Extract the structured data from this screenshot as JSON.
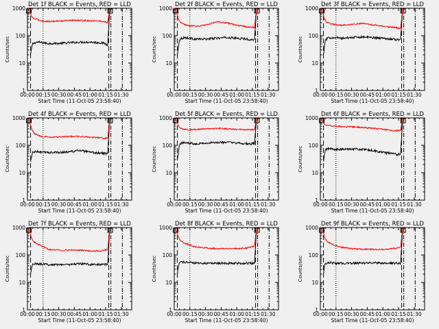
{
  "figure": {
    "ylabel": "Counts/sec",
    "xlabel": "Start Time (11-Oct-05 23:58:40)",
    "xtick_labels": [
      "00:00",
      "00:15",
      "00:30",
      "00:45",
      "01:00",
      "01:15",
      "01:30"
    ],
    "ytick_labels": [
      "1",
      "10",
      "100",
      "1000"
    ],
    "colors": {
      "events": "#000000",
      "lld": "#ff0000",
      "background": "#f0f0f0"
    }
  },
  "chart_data": [
    {
      "type": "line",
      "title": "Det 1f BLACK = Events, RED = LLD",
      "xlabel": "Start Time (11-Oct-05 23:58:40)",
      "ylabel": "Counts/sec",
      "x_unit": "minutes after 00:00",
      "xlim": [
        0,
        100
      ],
      "ylim": [
        1,
        1000
      ],
      "yscale": "log",
      "series": [
        {
          "name": "Events",
          "color": "#000000",
          "x": [
            3,
            4,
            5,
            7,
            10,
            15,
            20,
            30,
            40,
            50,
            60,
            70,
            74,
            77,
            79
          ],
          "y": [
            20,
            35,
            50,
            55,
            58,
            55,
            52,
            52,
            55,
            58,
            58,
            55,
            52,
            45,
            1000
          ]
        },
        {
          "name": "LLD",
          "color": "#ff0000",
          "x": [
            0,
            1,
            2,
            4,
            6,
            10,
            15,
            20,
            30,
            40,
            50,
            60,
            70,
            74,
            77,
            79
          ],
          "y": [
            1000,
            1000,
            800,
            500,
            420,
            380,
            340,
            330,
            340,
            360,
            360,
            350,
            340,
            320,
            300,
            1000
          ]
        }
      ],
      "vlines_dashed": [
        3,
        78
      ],
      "vlines_dotted": [
        15
      ],
      "vlines_dashdot": [
        80,
        91
      ]
    },
    {
      "type": "line",
      "title": "Det 2f BLACK = Events, RED = LLD",
      "xlabel": "Start Time (11-Oct-05 23:58:40)",
      "ylabel": "Counts/sec",
      "x_unit": "minutes after 00:00",
      "xlim": [
        0,
        100
      ],
      "ylim": [
        1,
        1000
      ],
      "yscale": "log",
      "series": [
        {
          "name": "Events",
          "color": "#000000",
          "x": [
            3,
            4,
            5,
            7,
            10,
            15,
            20,
            30,
            40,
            50,
            60,
            70,
            74,
            77,
            79
          ],
          "y": [
            20,
            40,
            70,
            80,
            85,
            80,
            75,
            75,
            80,
            85,
            80,
            75,
            70,
            75,
            1000
          ]
        },
        {
          "name": "LLD",
          "color": "#ff0000",
          "x": [
            0,
            1,
            2,
            4,
            6,
            10,
            15,
            20,
            30,
            40,
            50,
            60,
            70,
            74,
            77,
            79
          ],
          "y": [
            1000,
            1000,
            800,
            400,
            300,
            250,
            230,
            220,
            240,
            320,
            290,
            240,
            210,
            200,
            200,
            1000
          ]
        }
      ],
      "vlines_dashed": [
        3,
        78
      ],
      "vlines_dotted": [
        15
      ],
      "vlines_dashdot": [
        80,
        91
      ]
    },
    {
      "type": "line",
      "title": "Det 3f BLACK = Events, RED = LLD",
      "xlabel": "Start Time (11-Oct-05 23:58:40)",
      "ylabel": "Counts/sec",
      "x_unit": "minutes after 00:00",
      "xlim": [
        0,
        100
      ],
      "ylim": [
        1,
        1000
      ],
      "yscale": "log",
      "series": [
        {
          "name": "Events",
          "color": "#000000",
          "x": [
            3,
            4,
            5,
            7,
            10,
            15,
            20,
            30,
            40,
            50,
            60,
            70,
            74,
            77,
            79
          ],
          "y": [
            20,
            40,
            70,
            80,
            85,
            85,
            80,
            85,
            90,
            85,
            80,
            75,
            70,
            75,
            1000
          ]
        },
        {
          "name": "LLD",
          "color": "#ff0000",
          "x": [
            0,
            1,
            2,
            4,
            6,
            10,
            15,
            20,
            30,
            40,
            50,
            60,
            70,
            74,
            77,
            79
          ],
          "y": [
            1000,
            1000,
            800,
            400,
            320,
            270,
            250,
            240,
            260,
            280,
            250,
            220,
            200,
            190,
            190,
            1000
          ]
        }
      ],
      "vlines_dashed": [
        3,
        78
      ],
      "vlines_dotted": [
        15
      ],
      "vlines_dashdot": [
        80,
        91
      ]
    },
    {
      "type": "line",
      "title": "Det 4f BLACK = Events, RED = LLD",
      "xlabel": "Start Time (11-Oct-05 23:58:40)",
      "ylabel": "Counts/sec",
      "x_unit": "minutes after 00:00",
      "xlim": [
        0,
        100
      ],
      "ylim": [
        1,
        1000
      ],
      "yscale": "log",
      "series": [
        {
          "name": "Events",
          "color": "#000000",
          "x": [
            3,
            4,
            5,
            7,
            10,
            15,
            20,
            30,
            40,
            50,
            60,
            70,
            74,
            77,
            79
          ],
          "y": [
            25,
            40,
            55,
            58,
            58,
            55,
            55,
            55,
            58,
            65,
            55,
            52,
            50,
            50,
            1000
          ]
        },
        {
          "name": "LLD",
          "color": "#ff0000",
          "x": [
            0,
            1,
            2,
            4,
            6,
            10,
            15,
            20,
            30,
            40,
            50,
            60,
            70,
            74,
            77,
            79
          ],
          "y": [
            1000,
            1000,
            800,
            400,
            280,
            230,
            210,
            200,
            200,
            210,
            210,
            200,
            190,
            180,
            180,
            1000
          ]
        }
      ],
      "vlines_dashed": [
        3,
        78
      ],
      "vlines_dotted": [
        15
      ],
      "vlines_dashdot": [
        80,
        91
      ]
    },
    {
      "type": "line",
      "title": "Det 5f BLACK = Events, RED = LLD",
      "xlabel": "Start Time (11-Oct-05 23:58:40)",
      "ylabel": "Counts/sec",
      "x_unit": "minutes after 00:00",
      "xlim": [
        0,
        100
      ],
      "ylim": [
        1,
        1000
      ],
      "yscale": "log",
      "series": [
        {
          "name": "Events",
          "color": "#000000",
          "x": [
            3,
            4,
            5,
            7,
            10,
            15,
            20,
            30,
            40,
            50,
            60,
            70,
            74,
            77,
            79
          ],
          "y": [
            30,
            60,
            110,
            120,
            125,
            120,
            115,
            120,
            125,
            130,
            120,
            115,
            110,
            120,
            1000
          ]
        },
        {
          "name": "LLD",
          "color": "#ff0000",
          "x": [
            0,
            1,
            2,
            4,
            6,
            10,
            15,
            20,
            30,
            40,
            50,
            60,
            70,
            74,
            77,
            79
          ],
          "y": [
            1000,
            1000,
            800,
            500,
            420,
            380,
            370,
            380,
            400,
            420,
            400,
            380,
            370,
            370,
            380,
            1000
          ]
        }
      ],
      "vlines_dashed": [
        3,
        78
      ],
      "vlines_dotted": [
        15
      ],
      "vlines_dashdot": [
        80,
        91
      ]
    },
    {
      "type": "line",
      "title": "Det 6f BLACK = Events, RED = LLD",
      "xlabel": "Start Time (11-Oct-05 23:58:40)",
      "ylabel": "Counts/sec",
      "x_unit": "minutes after 00:00",
      "xlim": [
        0,
        100
      ],
      "ylim": [
        1,
        1000
      ],
      "yscale": "log",
      "series": [
        {
          "name": "Events",
          "color": "#000000",
          "x": [
            3,
            4,
            5,
            7,
            10,
            15,
            20,
            30,
            40,
            50,
            60,
            70,
            74,
            77,
            79
          ],
          "y": [
            25,
            45,
            70,
            75,
            75,
            70,
            70,
            75,
            70,
            65,
            55,
            50,
            45,
            50,
            1000
          ]
        },
        {
          "name": "LLD",
          "color": "#ff0000",
          "x": [
            0,
            1,
            2,
            4,
            6,
            10,
            15,
            20,
            30,
            40,
            50,
            60,
            70,
            74,
            77,
            79
          ],
          "y": [
            1000,
            1000,
            800,
            600,
            560,
            520,
            500,
            480,
            470,
            450,
            420,
            380,
            340,
            340,
            350,
            1000
          ]
        }
      ],
      "vlines_dashed": [
        3,
        78
      ],
      "vlines_dotted": [
        15
      ],
      "vlines_dashdot": [
        80,
        91
      ]
    },
    {
      "type": "line",
      "title": "Det 7f BLACK = Events, RED = LLD",
      "xlabel": "Start Time (11-Oct-05 23:58:40)",
      "ylabel": "Counts/sec",
      "x_unit": "minutes after 00:00",
      "xlim": [
        0,
        100
      ],
      "ylim": [
        1,
        1000
      ],
      "yscale": "log",
      "series": [
        {
          "name": "Events",
          "color": "#000000",
          "x": [
            3,
            4,
            5,
            7,
            10,
            15,
            20,
            30,
            40,
            50,
            60,
            70,
            74,
            77,
            79
          ],
          "y": [
            20,
            35,
            45,
            48,
            48,
            45,
            45,
            45,
            45,
            48,
            45,
            45,
            45,
            45,
            1000
          ]
        },
        {
          "name": "LLD",
          "color": "#ff0000",
          "x": [
            0,
            1,
            2,
            4,
            6,
            10,
            15,
            20,
            30,
            40,
            50,
            60,
            70,
            74,
            77,
            79
          ],
          "y": [
            1000,
            1000,
            800,
            400,
            300,
            250,
            200,
            160,
            150,
            150,
            150,
            140,
            140,
            150,
            160,
            1000
          ]
        }
      ],
      "vlines_dashed": [
        3,
        78
      ],
      "vlines_dotted": [
        15
      ],
      "vlines_dashdot": [
        80,
        91
      ]
    },
    {
      "type": "line",
      "title": "Det 8f BLACK = Events, RED = LLD",
      "xlabel": "Start Time (11-Oct-05 23:58:40)",
      "ylabel": "Counts/sec",
      "x_unit": "minutes after 00:00",
      "xlim": [
        0,
        100
      ],
      "ylim": [
        1,
        1000
      ],
      "yscale": "log",
      "series": [
        {
          "name": "Events",
          "color": "#000000",
          "x": [
            3,
            4,
            5,
            7,
            10,
            15,
            20,
            30,
            40,
            50,
            60,
            70,
            74,
            77,
            79
          ],
          "y": [
            20,
            40,
            55,
            55,
            55,
            52,
            50,
            50,
            50,
            50,
            50,
            50,
            50,
            50,
            1000
          ]
        },
        {
          "name": "LLD",
          "color": "#ff0000",
          "x": [
            0,
            1,
            2,
            4,
            6,
            10,
            15,
            20,
            30,
            40,
            50,
            60,
            70,
            74,
            77,
            79
          ],
          "y": [
            1000,
            1000,
            800,
            450,
            330,
            270,
            230,
            200,
            180,
            170,
            170,
            170,
            180,
            200,
            210,
            1000
          ]
        }
      ],
      "vlines_dashed": [
        3,
        78
      ],
      "vlines_dotted": [
        15
      ],
      "vlines_dashdot": [
        80,
        91
      ]
    },
    {
      "type": "line",
      "title": "Det 9f BLACK = Events, RED = LLD",
      "xlabel": "Start Time (11-Oct-05 23:58:40)",
      "ylabel": "Counts/sec",
      "x_unit": "minutes after 00:00",
      "xlim": [
        0,
        100
      ],
      "ylim": [
        1,
        1000
      ],
      "yscale": "log",
      "series": [
        {
          "name": "Events",
          "color": "#000000",
          "x": [
            3,
            4,
            5,
            7,
            10,
            15,
            20,
            30,
            40,
            50,
            60,
            70,
            74,
            77,
            79
          ],
          "y": [
            20,
            40,
            50,
            52,
            52,
            50,
            50,
            50,
            50,
            52,
            50,
            50,
            50,
            50,
            1000
          ]
        },
        {
          "name": "LLD",
          "color": "#ff0000",
          "x": [
            0,
            1,
            2,
            4,
            6,
            10,
            15,
            20,
            30,
            40,
            50,
            60,
            70,
            74,
            77,
            79
          ],
          "y": [
            1000,
            1000,
            800,
            450,
            320,
            260,
            220,
            190,
            170,
            160,
            160,
            160,
            170,
            180,
            200,
            1000
          ]
        }
      ],
      "vlines_dashed": [
        3,
        78
      ],
      "vlines_dotted": [
        15
      ],
      "vlines_dashdot": [
        80,
        91
      ]
    }
  ]
}
